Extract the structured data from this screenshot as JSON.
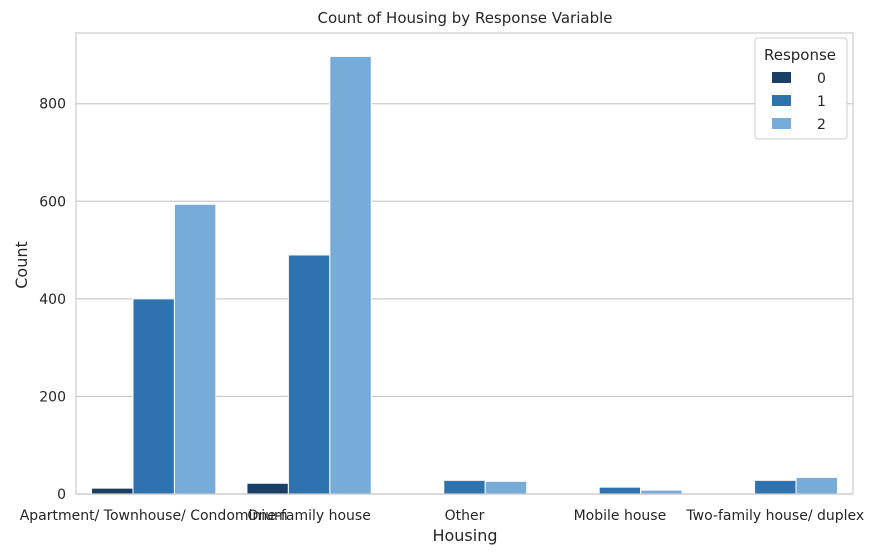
{
  "chart_data": {
    "type": "bar",
    "title": "Count of Housing  by Response Variable",
    "xlabel": "Housing",
    "ylabel": "Count",
    "categories": [
      "Apartment/ Townhouse/ Condominium",
      "One-family house",
      "Other",
      "Mobile house",
      "Two-family house/ duplex"
    ],
    "series": [
      {
        "name": "0",
        "values": [
          12,
          22,
          0,
          0,
          0
        ]
      },
      {
        "name": "1",
        "values": [
          400,
          490,
          28,
          14,
          28
        ]
      },
      {
        "name": "2",
        "values": [
          594,
          897,
          26,
          8,
          34
        ]
      }
    ],
    "ylim": [
      0,
      945
    ],
    "yticks": [
      0,
      200,
      400,
      600,
      800
    ],
    "grid": true,
    "legend": {
      "title": "Response",
      "position": "top-right"
    }
  },
  "colors": {
    "series": [
      "#1a3f66",
      "#2f72b0",
      "#77acd9"
    ],
    "grid": "#cccccc",
    "frame": "#cccccc",
    "text": "#262626"
  }
}
